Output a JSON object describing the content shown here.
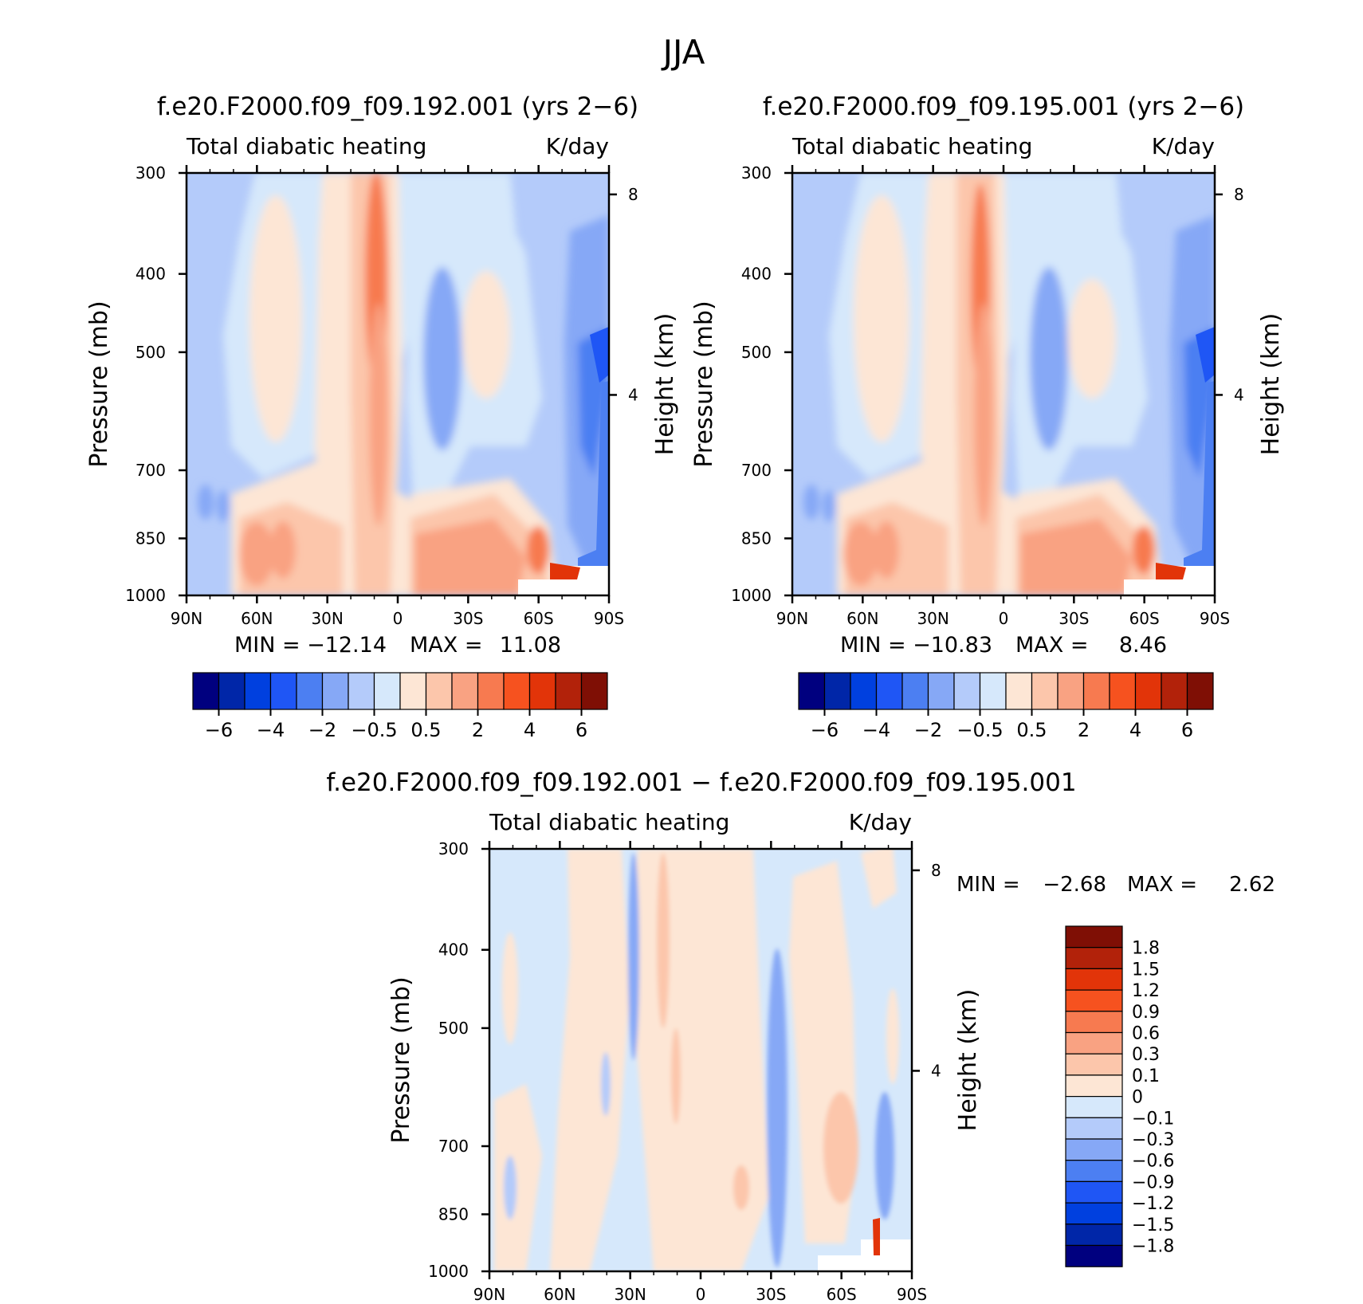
{
  "figure": {
    "title": "JJA"
  },
  "colors": {
    "full_scale": [
      "#00007f",
      "#0026a8",
      "#0040df",
      "#1f56f5",
      "#4c7ff2",
      "#86a8f6",
      "#b4cbfa",
      "#d6e8fb",
      "#fde6d5",
      "#fcc6ab",
      "#f9a282",
      "#f77a50",
      "#f6521f",
      "#e23409",
      "#b2220a",
      "#7f0f05"
    ],
    "diff_scale": [
      "#00007f",
      "#0026a8",
      "#0040df",
      "#1f56f5",
      "#4c7ff2",
      "#86a8f6",
      "#b4cbfa",
      "#d6e8fb",
      "#fde6d5",
      "#fcc6ab",
      "#f9a282",
      "#f77a50",
      "#f6521f",
      "#e23409",
      "#b2220a",
      "#7f0f05"
    ]
  },
  "chart_data": [
    {
      "type": "heatmap",
      "title": "f.e20.F2000.f09_f09.192.001 (yrs 2−6)",
      "subtitle_left": "Total diabatic heating",
      "subtitle_right": "K/day",
      "xlabel": "",
      "ylabel": "Pressure (mb)",
      "ylabel_right": "Height (km)",
      "x_ticks": [
        "90N",
        "60N",
        "30N",
        "0",
        "30S",
        "60S",
        "90S"
      ],
      "y_ticks": [
        "300",
        "400",
        "500",
        "700",
        "850",
        "1000"
      ],
      "y2_ticks": [
        "8",
        "4"
      ],
      "ylim": [
        1000,
        300
      ],
      "xlim": [
        90,
        -90
      ],
      "log_scale": true,
      "min_label": "MIN =",
      "min_value": "−12.14",
      "max_label": "MAX =",
      "max_value": "11.08",
      "colorbar_labels": [
        "−6",
        "−4",
        "−2",
        "−0.5",
        "0.5",
        "2",
        "4",
        "6"
      ]
    },
    {
      "type": "heatmap",
      "title": "f.e20.F2000.f09_f09.195.001 (yrs 2−6)",
      "subtitle_left": "Total diabatic heating",
      "subtitle_right": "K/day",
      "xlabel": "",
      "ylabel": "Pressure (mb)",
      "ylabel_right": "Height (km)",
      "x_ticks": [
        "90N",
        "60N",
        "30N",
        "0",
        "30S",
        "60S",
        "90S"
      ],
      "y_ticks": [
        "300",
        "400",
        "500",
        "700",
        "850",
        "1000"
      ],
      "y2_ticks": [
        "8",
        "4"
      ],
      "ylim": [
        1000,
        300
      ],
      "xlim": [
        90,
        -90
      ],
      "log_scale": true,
      "min_label": "MIN =",
      "min_value": "−10.83",
      "max_label": "MAX =",
      "max_value": "8.46",
      "colorbar_labels": [
        "−6",
        "−4",
        "−2",
        "−0.5",
        "0.5",
        "2",
        "4",
        "6"
      ]
    },
    {
      "type": "heatmap",
      "title": "f.e20.F2000.f09_f09.192.001 − f.e20.F2000.f09_f09.195.001",
      "subtitle_left": "Total diabatic heating",
      "subtitle_right": "K/day",
      "xlabel": "",
      "ylabel": "Pressure (mb)",
      "ylabel_right": "Height (km)",
      "x_ticks": [
        "90N",
        "60N",
        "30N",
        "0",
        "30S",
        "60S",
        "90S"
      ],
      "y_ticks": [
        "300",
        "400",
        "500",
        "700",
        "850",
        "1000"
      ],
      "y2_ticks": [
        "8",
        "4"
      ],
      "ylim": [
        1000,
        300
      ],
      "xlim": [
        90,
        -90
      ],
      "log_scale": true,
      "min_label": "MIN =",
      "min_value": "−2.68",
      "max_label": "MAX =",
      "max_value": "2.62",
      "colorbar_labels": [
        "1.8",
        "1.5",
        "1.2",
        "0.9",
        "0.6",
        "0.3",
        "0.1",
        "0",
        "−0.1",
        "−0.3",
        "−0.6",
        "−0.9",
        "−1.2",
        "−1.5",
        "−1.8"
      ]
    }
  ]
}
